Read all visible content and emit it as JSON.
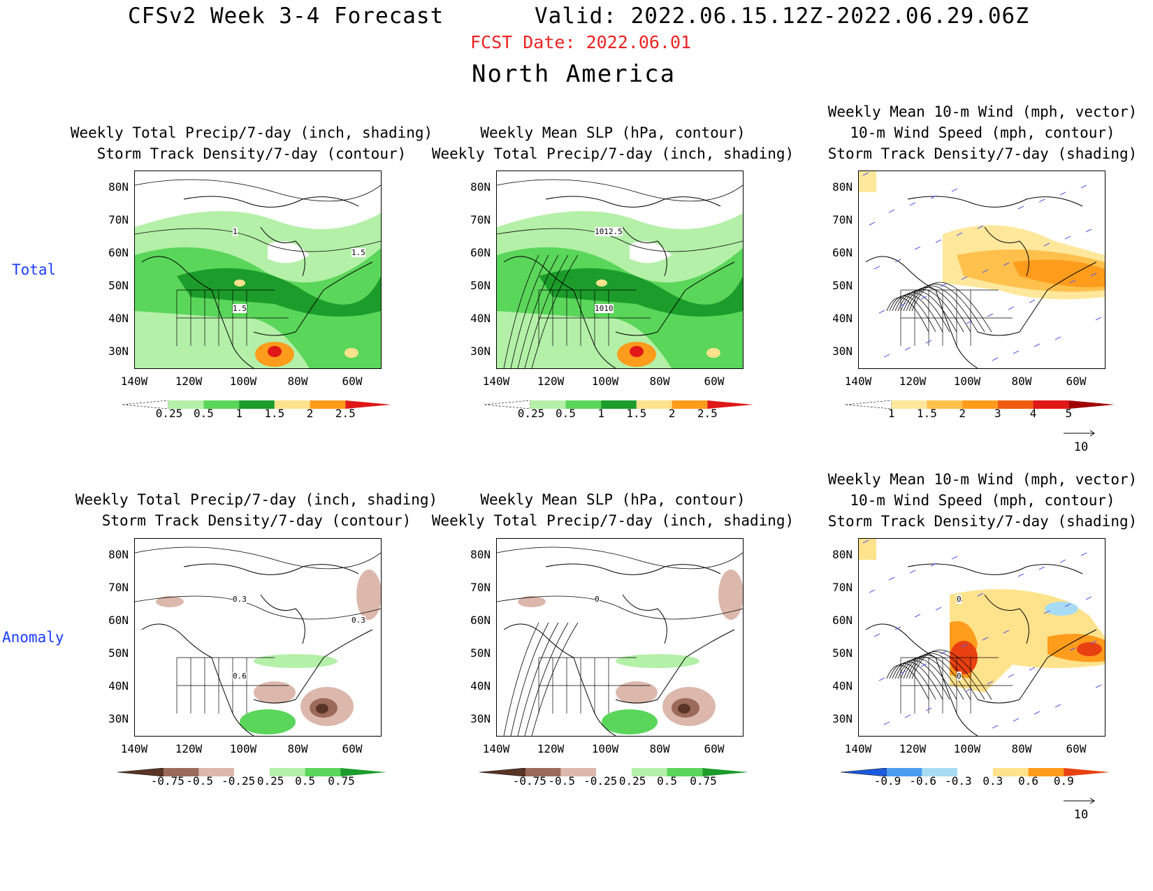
{
  "header": {
    "title": "CFSv2 Week 3-4 Forecast",
    "valid": "Valid: 2022.06.15.12Z-2022.06.29.06Z",
    "fcst_date": "FCST Date: 2022.06.01",
    "region": "North America"
  },
  "row_labels": {
    "total": "Total",
    "anomaly": "Anomaly"
  },
  "axes": {
    "lat_ticks": [
      "80N",
      "70N",
      "60N",
      "50N",
      "40N",
      "30N"
    ],
    "lon_ticks": [
      "140W",
      "120W",
      "100W",
      "80W",
      "60W"
    ]
  },
  "panels": [
    {
      "id": "total-precip",
      "title": [
        "Weekly Total Precip/7-day (inch, shading)",
        "Storm Track Density/7-day (contour)"
      ],
      "colorbar": {
        "labels": [
          "0.25",
          "0.5",
          "1",
          "1.5",
          "2",
          "2.5"
        ],
        "colors": [
          "#ffffff",
          "#b4f0a8",
          "#5ad65a",
          "#1c9c2a",
          "#ffe28c",
          "#ff9c1c",
          "#e01818"
        ]
      },
      "contour_labels": [
        "1",
        "1.5",
        "1.5"
      ]
    },
    {
      "id": "total-slp",
      "title": [
        "Weekly Mean SLP (hPa, contour)",
        "Weekly Total Precip/7-day (inch, shading)"
      ],
      "colorbar": {
        "labels": [
          "0.25",
          "0.5",
          "1",
          "1.5",
          "2",
          "2.5"
        ],
        "colors": [
          "#ffffff",
          "#b4f0a8",
          "#5ad65a",
          "#1c9c2a",
          "#ffe28c",
          "#ff9c1c",
          "#e01818"
        ]
      },
      "contour_labels": [
        "1012.5",
        "1010"
      ]
    },
    {
      "id": "total-wind",
      "title": [
        "Weekly Mean 10-m Wind (mph, vector)",
        "10-m Wind Speed (mph, contour)",
        "Storm Track Density/7-day (shading)"
      ],
      "colorbar": {
        "labels": [
          "1",
          "1.5",
          "2",
          "3",
          "4",
          "5"
        ],
        "colors": [
          "#ffffff",
          "#ffe89c",
          "#ffc04c",
          "#ff9c1c",
          "#f05a10",
          "#e01818",
          "#a00000"
        ]
      },
      "vector_ref": "10"
    },
    {
      "id": "anom-precip",
      "title": [
        "Weekly Total Precip/7-day (inch, shading)",
        "Storm Track Density/7-day (contour)"
      ],
      "colorbar": {
        "labels": [
          "-0.75",
          "-0.5",
          "-0.25",
          "0.25",
          "0.5",
          "0.75"
        ],
        "colors": [
          "#5a3424",
          "#9c6a5a",
          "#dcb8ac",
          "#ffffff",
          "#b4f0a8",
          "#5ad65a",
          "#1c9c2a"
        ]
      },
      "contour_labels": [
        "0.3",
        "0.6",
        "0.3"
      ]
    },
    {
      "id": "anom-slp",
      "title": [
        "Weekly Mean SLP (hPa, contour)",
        "Weekly Total Precip/7-day (inch, shading)"
      ],
      "colorbar": {
        "labels": [
          "-0.75",
          "-0.5",
          "-0.25",
          "0.25",
          "0.5",
          "0.75"
        ],
        "colors": [
          "#5a3424",
          "#9c6a5a",
          "#dcb8ac",
          "#ffffff",
          "#b4f0a8",
          "#5ad65a",
          "#1c9c2a"
        ]
      },
      "contour_labels": [
        "0"
      ]
    },
    {
      "id": "anom-wind",
      "title": [
        "Weekly Mean 10-m Wind (mph, vector)",
        "10-m Wind Speed (mph, contour)",
        "Storm Track Density/7-day (shading)"
      ],
      "colorbar": {
        "labels": [
          "-0.9",
          "-0.6",
          "-0.3",
          "0.3",
          "0.6",
          "0.9"
        ],
        "colors": [
          "#1c5ae0",
          "#4c9cf0",
          "#a8dcf4",
          "#ffffff",
          "#ffe28c",
          "#ff9c1c",
          "#e84010"
        ]
      },
      "vector_ref": "10",
      "contour_labels": [
        "0",
        "0"
      ]
    }
  ]
}
